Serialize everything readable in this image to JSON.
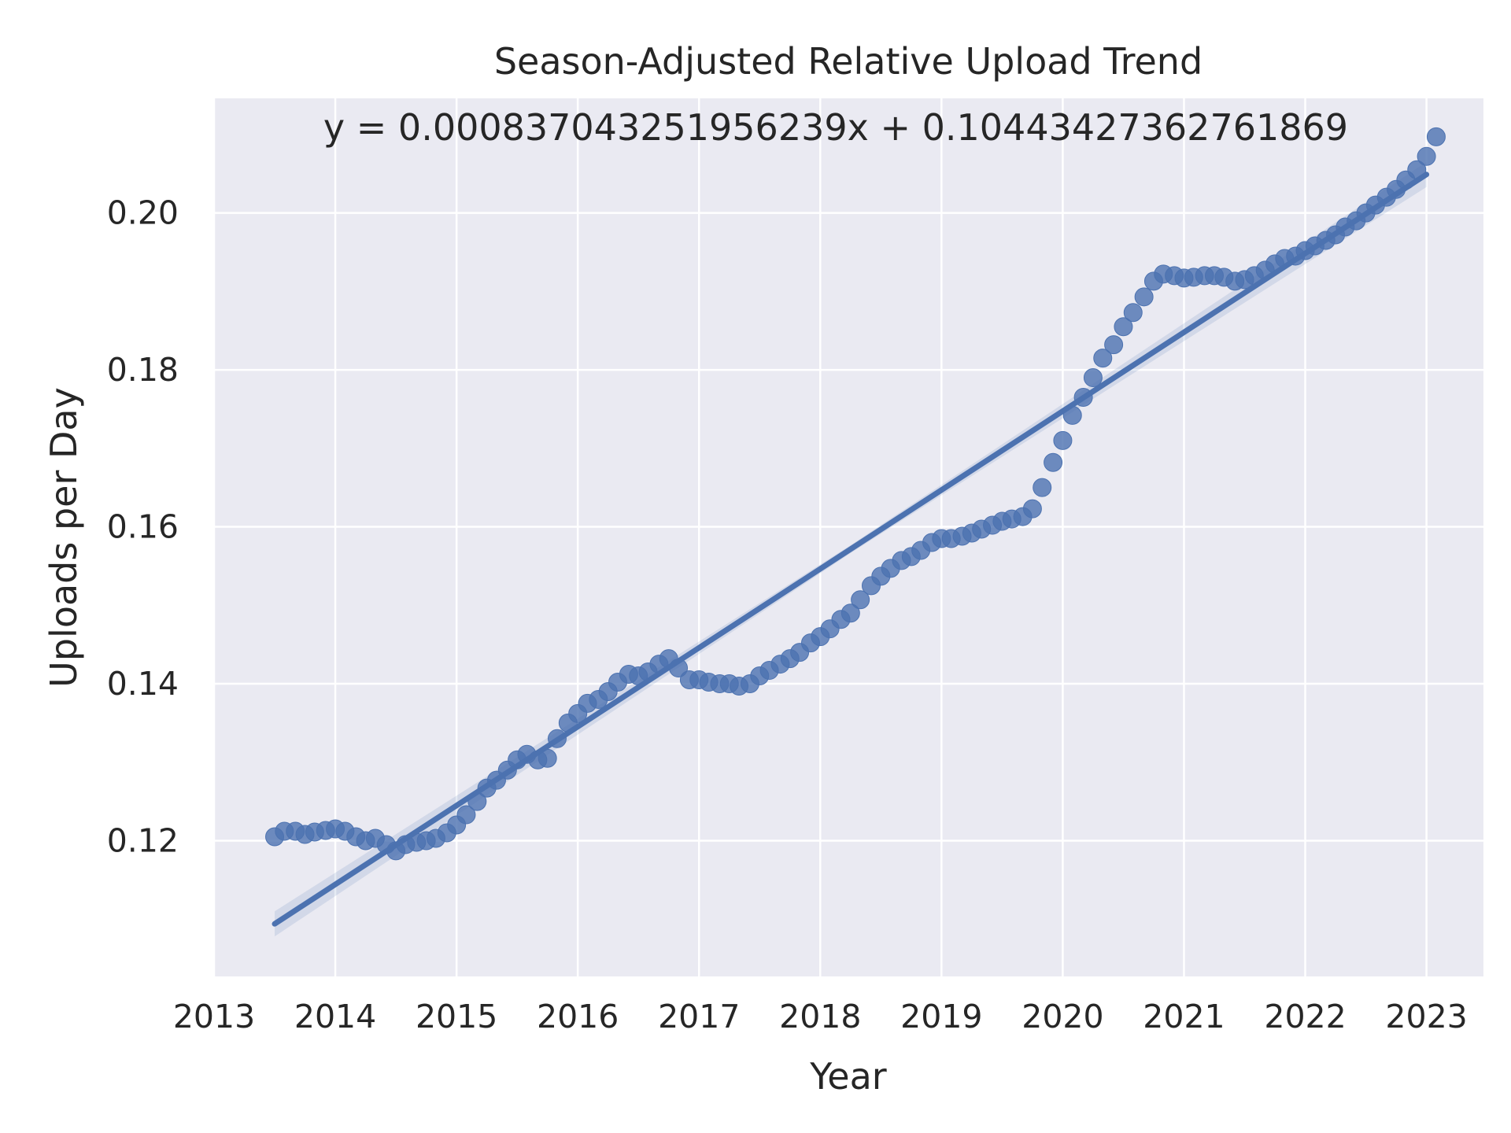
{
  "chart_data": {
    "type": "scatter",
    "title": "Season-Adjusted Relative Upload Trend",
    "xlabel": "Year",
    "ylabel": "Uploads per Day",
    "annotation": "y = 0.000837043251956239x + 0.10443427362761869",
    "xlim": [
      2013.0,
      2023.47
    ],
    "ylim": [
      0.1027,
      0.2146
    ],
    "x_ticks": [
      "2013",
      "2014",
      "2015",
      "2016",
      "2017",
      "2018",
      "2019",
      "2020",
      "2021",
      "2022",
      "2023"
    ],
    "y_ticks": [
      "0.12",
      "0.14",
      "0.16",
      "0.18",
      "0.20"
    ],
    "grid": true,
    "background_color": "#eaeaf2",
    "series_color": "#4c72b0",
    "regression_line": {
      "slope_per_month": 0.000837043251956239,
      "intercept": 0.10443427362761869,
      "x_start": 2013.5,
      "x_end": 2023.0,
      "y_start": 0.1094,
      "y_end": 0.2049
    },
    "series": [
      {
        "values": [
          [
            2013.5,
            0.1205
          ],
          [
            2013.58,
            0.1212
          ],
          [
            2013.67,
            0.1212
          ],
          [
            2013.75,
            0.1208
          ],
          [
            2013.83,
            0.1211
          ],
          [
            2013.92,
            0.1213
          ],
          [
            2014.0,
            0.1215
          ],
          [
            2014.08,
            0.1212
          ],
          [
            2014.17,
            0.1205
          ],
          [
            2014.25,
            0.12
          ],
          [
            2014.33,
            0.1203
          ],
          [
            2014.42,
            0.1195
          ],
          [
            2014.5,
            0.1187
          ],
          [
            2014.58,
            0.1195
          ],
          [
            2014.67,
            0.1198
          ],
          [
            2014.75,
            0.12
          ],
          [
            2014.83,
            0.1203
          ],
          [
            2014.92,
            0.121
          ],
          [
            2015.0,
            0.122
          ],
          [
            2015.08,
            0.1233
          ],
          [
            2015.17,
            0.125
          ],
          [
            2015.25,
            0.1267
          ],
          [
            2015.33,
            0.1277
          ],
          [
            2015.42,
            0.129
          ],
          [
            2015.5,
            0.1303
          ],
          [
            2015.58,
            0.131
          ],
          [
            2015.67,
            0.1303
          ],
          [
            2015.75,
            0.1305
          ],
          [
            2015.83,
            0.133
          ],
          [
            2015.92,
            0.135
          ],
          [
            2016.0,
            0.1362
          ],
          [
            2016.08,
            0.1375
          ],
          [
            2016.17,
            0.138
          ],
          [
            2016.25,
            0.139
          ],
          [
            2016.33,
            0.1402
          ],
          [
            2016.42,
            0.1412
          ],
          [
            2016.5,
            0.141
          ],
          [
            2016.58,
            0.1415
          ],
          [
            2016.67,
            0.1425
          ],
          [
            2016.75,
            0.1432
          ],
          [
            2016.83,
            0.142
          ],
          [
            2016.92,
            0.1405
          ],
          [
            2017.0,
            0.1405
          ],
          [
            2017.08,
            0.1402
          ],
          [
            2017.17,
            0.14
          ],
          [
            2017.25,
            0.14
          ],
          [
            2017.33,
            0.1397
          ],
          [
            2017.42,
            0.14
          ],
          [
            2017.5,
            0.141
          ],
          [
            2017.58,
            0.1417
          ],
          [
            2017.67,
            0.1425
          ],
          [
            2017.75,
            0.1432
          ],
          [
            2017.83,
            0.144
          ],
          [
            2017.92,
            0.1452
          ],
          [
            2018.0,
            0.146
          ],
          [
            2018.08,
            0.147
          ],
          [
            2018.17,
            0.1482
          ],
          [
            2018.25,
            0.149
          ],
          [
            2018.33,
            0.1507
          ],
          [
            2018.42,
            0.1525
          ],
          [
            2018.5,
            0.1537
          ],
          [
            2018.58,
            0.1547
          ],
          [
            2018.67,
            0.1557
          ],
          [
            2018.75,
            0.1562
          ],
          [
            2018.83,
            0.157
          ],
          [
            2018.92,
            0.158
          ],
          [
            2019.0,
            0.1585
          ],
          [
            2019.08,
            0.1585
          ],
          [
            2019.17,
            0.1588
          ],
          [
            2019.25,
            0.1592
          ],
          [
            2019.33,
            0.1597
          ],
          [
            2019.42,
            0.1602
          ],
          [
            2019.5,
            0.1607
          ],
          [
            2019.58,
            0.161
          ],
          [
            2019.67,
            0.1613
          ],
          [
            2019.75,
            0.1623
          ],
          [
            2019.83,
            0.165
          ],
          [
            2019.92,
            0.1682
          ],
          [
            2020.0,
            0.171
          ],
          [
            2020.08,
            0.1742
          ],
          [
            2020.17,
            0.1765
          ],
          [
            2020.25,
            0.179
          ],
          [
            2020.33,
            0.1815
          ],
          [
            2020.42,
            0.1832
          ],
          [
            2020.5,
            0.1855
          ],
          [
            2020.58,
            0.1873
          ],
          [
            2020.67,
            0.1893
          ],
          [
            2020.75,
            0.1913
          ],
          [
            2020.83,
            0.1922
          ],
          [
            2020.92,
            0.192
          ],
          [
            2021.0,
            0.1917
          ],
          [
            2021.08,
            0.1918
          ],
          [
            2021.17,
            0.192
          ],
          [
            2021.25,
            0.192
          ],
          [
            2021.33,
            0.1918
          ],
          [
            2021.42,
            0.1913
          ],
          [
            2021.5,
            0.1915
          ],
          [
            2021.58,
            0.192
          ],
          [
            2021.67,
            0.1927
          ],
          [
            2021.75,
            0.1935
          ],
          [
            2021.83,
            0.1942
          ],
          [
            2021.92,
            0.1945
          ],
          [
            2022.0,
            0.1952
          ],
          [
            2022.08,
            0.1958
          ],
          [
            2022.17,
            0.1965
          ],
          [
            2022.25,
            0.1972
          ],
          [
            2022.33,
            0.1982
          ],
          [
            2022.42,
            0.199
          ],
          [
            2022.5,
            0.2
          ],
          [
            2022.58,
            0.201
          ],
          [
            2022.67,
            0.202
          ],
          [
            2022.75,
            0.203
          ],
          [
            2022.83,
            0.2042
          ],
          [
            2022.92,
            0.2055
          ],
          [
            2023.0,
            0.2072
          ],
          [
            2023.08,
            0.2097
          ]
        ]
      }
    ]
  }
}
